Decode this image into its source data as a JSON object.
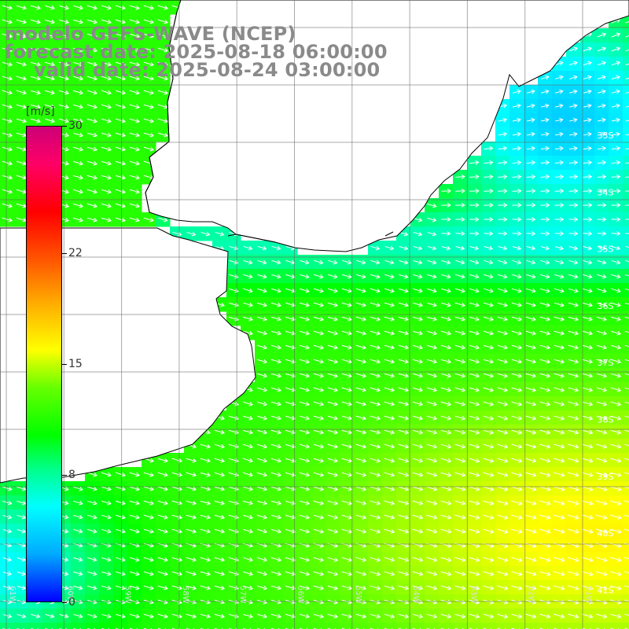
{
  "titles": {
    "line1": "modelo GEFS-WAVE (NCEP)",
    "line2": "forecast date: 2025-08-18 06:00:00",
    "line3": "valid date: 2025-08-24 03:00:00"
  },
  "colorbar": {
    "unit": "[m/s]",
    "min": 0,
    "max": 30,
    "ticks": [
      {
        "label": "30",
        "value": 30
      },
      {
        "label": "22",
        "value": 22
      },
      {
        "label": "15",
        "value": 15
      },
      {
        "label": "8",
        "value": 8
      },
      {
        "label": "0",
        "value": 0
      }
    ],
    "colors": [
      "#0000ff",
      "#00aaff",
      "#00ffff",
      "#00ff00",
      "#ffff00",
      "#ff5500",
      "#ff0000",
      "#cc0077"
    ]
  },
  "map": {
    "lon_range": [
      -61,
      -50
    ],
    "lat_range": [
      -41,
      -30
    ],
    "lat_labels": [
      "33S",
      "34S",
      "35S",
      "36S",
      "37S",
      "38S",
      "39S",
      "40S",
      "41S"
    ],
    "lon_labels": [
      "61W",
      "60W",
      "59W",
      "58W",
      "57W",
      "56W",
      "55W",
      "54W",
      "53W",
      "52W",
      "51W"
    ],
    "grid": true,
    "land_color": "#ffffff",
    "coastline_color": "#000000",
    "arrow_color": "#ffffff"
  }
}
